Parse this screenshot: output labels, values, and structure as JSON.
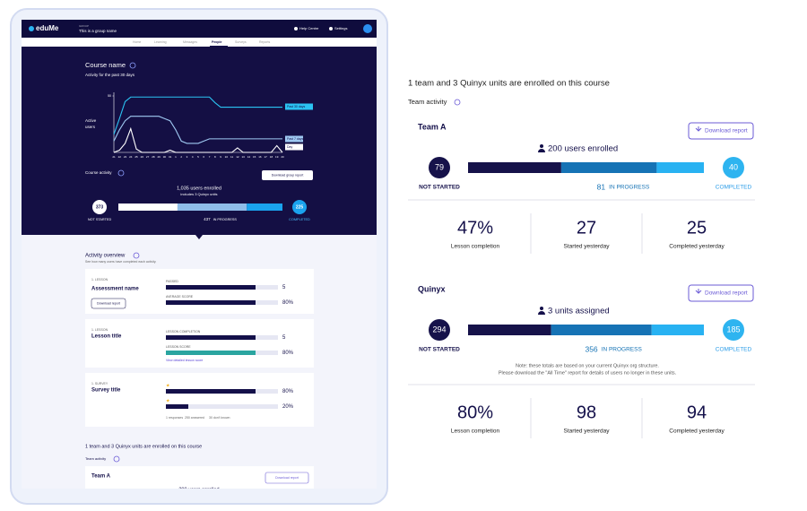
{
  "app": {
    "logo": "eduMe",
    "group_label": "GROUP",
    "group_name": "This is a group name",
    "help": "Help Centre",
    "settings": "Settings"
  },
  "tabs": [
    "Home",
    "Learning",
    "Messages",
    "People",
    "Surveys",
    "Reports"
  ],
  "course": {
    "title": "Course name",
    "subtitle": "Activity for the past 30 days",
    "chart": {
      "type": "line",
      "y_label": [
        "Active",
        "users"
      ],
      "ylim": [
        0,
        50
      ],
      "yticks": [
        50
      ],
      "x": [
        "21",
        "22",
        "23",
        "24",
        "25",
        "26",
        "27",
        "28",
        "29",
        "30",
        "31",
        "1",
        "2",
        "3",
        "4",
        "5",
        "6",
        "7",
        "8",
        "9",
        "10",
        "11",
        "12",
        "13",
        "14",
        "15",
        "16",
        "17",
        "18",
        "19",
        "20"
      ],
      "series": [
        {
          "name": "Past 30 days",
          "color": "#2bc3f2",
          "values": [
            16,
            30,
            45,
            49,
            49,
            49,
            49,
            49,
            49,
            49,
            49,
            49,
            49,
            49,
            49,
            49,
            49,
            49,
            44,
            40,
            40,
            40,
            40,
            40,
            40,
            40,
            40,
            40,
            40,
            40,
            40
          ]
        },
        {
          "name": "Past 7 days",
          "color": "#9fc9f2",
          "values": [
            10,
            20,
            28,
            32,
            32,
            32,
            32,
            32,
            32,
            30,
            28,
            20,
            10,
            8,
            8,
            8,
            10,
            12,
            12,
            12,
            12,
            12,
            12,
            12,
            12,
            12,
            12,
            12,
            12,
            12,
            12
          ]
        },
        {
          "name": "Day",
          "color": "#ffffff",
          "values": [
            0,
            2,
            8,
            21,
            3,
            0,
            0,
            0,
            0,
            0,
            2,
            0,
            0,
            0,
            0,
            0,
            0,
            0,
            0,
            0,
            0,
            0,
            4,
            0,
            0,
            0,
            0,
            0,
            0,
            6,
            0
          ]
        }
      ]
    },
    "activity_label": "Course activity",
    "download": "Download group report",
    "enrolled": "1,035 users enrolled",
    "includes": "includes 3 Quinyx units",
    "progress": [
      {
        "value": 373,
        "label": "NOT STARTED"
      },
      {
        "value": 437,
        "label": "IN PROGRESS"
      },
      {
        "value": 225,
        "label": "COMPLETED"
      }
    ]
  },
  "overview": {
    "title": "Activity overview",
    "subtitle": "See how many users have completed each activity.",
    "cards": [
      {
        "kind": "1. LESSON",
        "title": "Assessment name",
        "button": "Download report",
        "metrics": [
          {
            "label": "PASSED",
            "value": "5"
          },
          {
            "label": "AVERAGE SCORE",
            "value": {
              "value": 80,
              "label": "80%"
            }
          }
        ]
      },
      {
        "kind": "1. LESSON",
        "title": "Lesson title",
        "link": "View detailed lesson score",
        "metrics": [
          {
            "label": "LESSON COMPLETION",
            "value": "5"
          },
          {
            "label": "LESSON SCORE",
            "value": {
              "value": 80,
              "label": "80%"
            }
          }
        ]
      },
      {
        "kind": "1. SURVEY",
        "title": "Survey title",
        "footer": [
          "1 responses",
          "250 answered",
          "30 don't known"
        ],
        "metrics": [
          {
            "label": "★",
            "value": {
              "value": 80,
              "label": "80%"
            }
          },
          {
            "label": "★",
            "value": {
              "value": 20,
              "label": "20%"
            }
          }
        ]
      }
    ]
  },
  "preview": {
    "heading": "1 team and 3 Quinyx units are enrolled on this course",
    "team_activity": "Team activity",
    "team": "Team A",
    "button": "Download report",
    "enrolled": "200 users enrolled"
  },
  "detail": {
    "heading": "1 team and 3 Quinyx units are enrolled on this course",
    "team_activity": "Team activity",
    "teams": [
      {
        "name": "Team A",
        "button": "Download report",
        "enrolled": "200 users enrolled",
        "progress": [
          {
            "value": 79,
            "label": "NOT STARTED"
          },
          {
            "value": 81,
            "label": "IN PROGRESS"
          },
          {
            "value": 40,
            "label": "COMPLETED"
          }
        ],
        "stats": [
          {
            "value": "47%",
            "label": "Lesson completion"
          },
          {
            "value": "27",
            "label": "Started yesterday"
          },
          {
            "value": "25",
            "label": "Completed yesterday"
          }
        ]
      },
      {
        "name": "Quinyx",
        "button": "Download report",
        "enrolled": "3 units assigned",
        "progress": [
          {
            "value": 294,
            "label": "NOT STARTED"
          },
          {
            "value": 356,
            "label": "IN PROGRESS"
          },
          {
            "value": 185,
            "label": "COMPLETED"
          }
        ],
        "note": [
          "Note: these totals are based on your current Quinyx org structure.",
          "Please download the \"All Time\" report for details of users no longer in these units."
        ],
        "stats": [
          {
            "value": "80%",
            "label": "Lesson completion"
          },
          {
            "value": "98",
            "label": "Started yesterday"
          },
          {
            "value": "94",
            "label": "Completed yesterday"
          }
        ]
      }
    ]
  }
}
